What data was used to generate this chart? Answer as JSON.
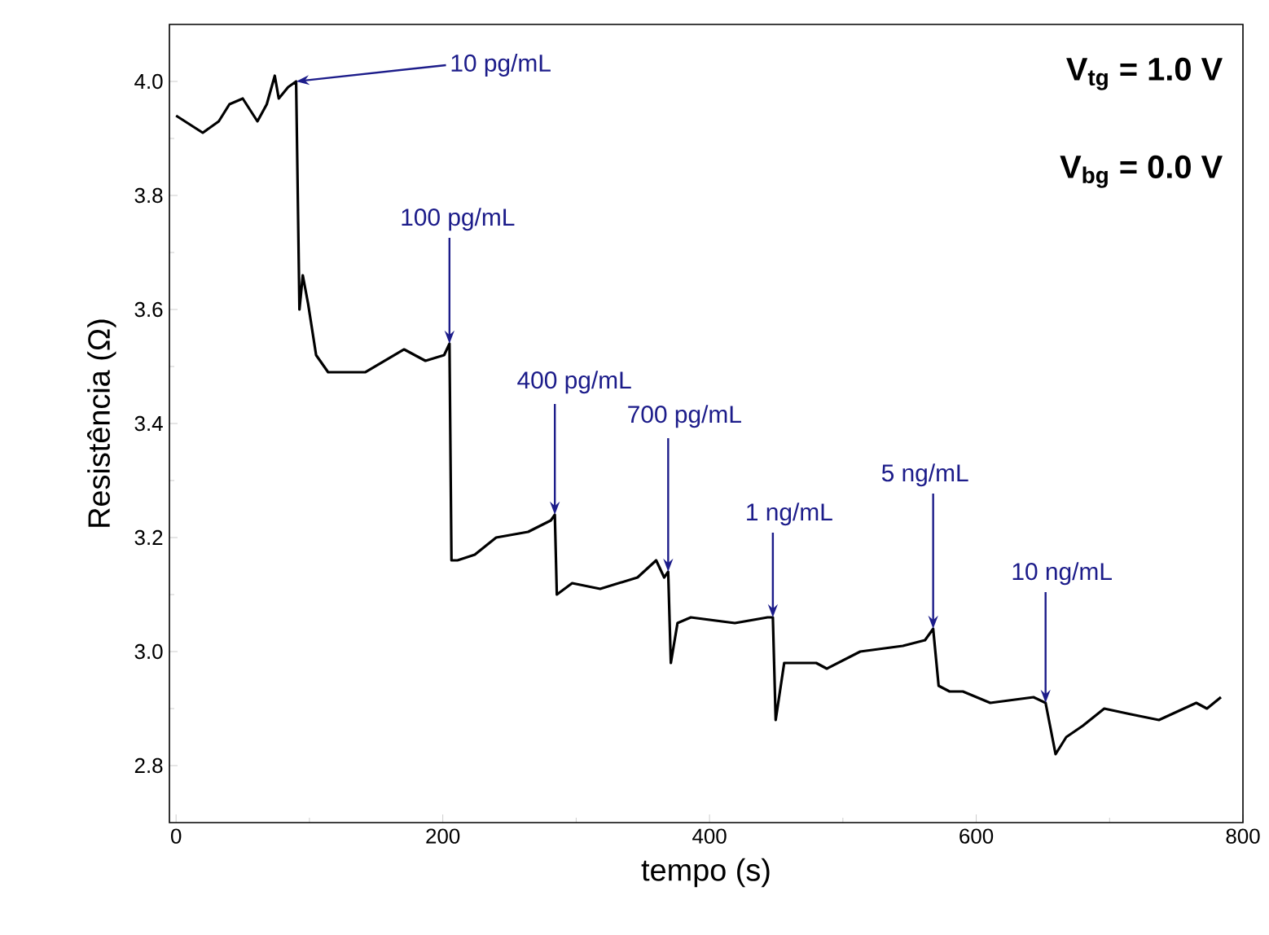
{
  "chart_data": {
    "type": "line",
    "xlabel": "tempo (s)",
    "ylabel": "Resistência (Ω)",
    "xlim": [
      -5,
      800
    ],
    "ylim": [
      2.7,
      4.1
    ],
    "xticks": [
      0,
      200,
      400,
      600,
      800
    ],
    "yticks": [
      {
        "value": 2.8,
        "label": "2.8"
      },
      {
        "value": 3.0,
        "label": "3.0"
      },
      {
        "value": 3.2,
        "label": "3.2"
      },
      {
        "value": 3.4,
        "label": "3.4"
      },
      {
        "value": 3.6,
        "label": "3.6"
      },
      {
        "value": 3.8,
        "label": "3.8"
      },
      {
        "value": 4.0,
        "label": "4.0"
      }
    ],
    "grid": false,
    "marker": "none",
    "line_style": "solid",
    "series": [
      {
        "color": "#000000",
        "x": [
          0,
          20,
          32,
          40,
          50,
          61,
          68,
          74,
          77,
          84,
          90,
          92.5,
          95,
          99,
          105,
          114,
          142,
          171,
          187,
          201,
          205,
          206.5,
          211,
          224,
          240,
          264,
          281,
          284,
          285.5,
          297,
          318,
          346,
          360,
          366,
          369,
          371,
          376,
          386,
          419,
          443.5,
          447.5,
          449.6,
          456,
          480,
          488,
          513,
          545,
          561.6,
          567.7,
          571.8,
          580,
          590,
          610.5,
          643,
          652,
          659.5,
          667.5,
          680,
          696,
          716,
          737,
          765,
          773,
          783.5
        ],
        "values": [
          3.94,
          3.91,
          3.93,
          3.96,
          3.97,
          3.93,
          3.96,
          4.01,
          3.97,
          3.99,
          4.0,
          3.6,
          3.66,
          3.61,
          3.52,
          3.49,
          3.49,
          3.53,
          3.51,
          3.52,
          3.54,
          3.16,
          3.16,
          3.17,
          3.2,
          3.21,
          3.23,
          3.24,
          3.1,
          3.12,
          3.11,
          3.13,
          3.16,
          3.13,
          3.14,
          2.98,
          3.05,
          3.06,
          3.05,
          3.06,
          3.06,
          2.88,
          2.98,
          2.98,
          2.97,
          3.0,
          3.01,
          3.02,
          3.04,
          2.94,
          2.93,
          2.93,
          2.91,
          2.92,
          2.91,
          2.82,
          2.85,
          2.87,
          2.9,
          2.89,
          2.88,
          2.91,
          2.9,
          2.92
        ]
      }
    ],
    "annotations": [
      {
        "text": "10 pg/mL",
        "x": 90,
        "y": 4.0
      },
      {
        "text": "100  pg/mL",
        "x": 205,
        "y": 3.54
      },
      {
        "text": "400 pg/mL",
        "x": 284,
        "y": 3.24
      },
      {
        "text": "700  pg/mL",
        "x": 369,
        "y": 3.14
      },
      {
        "text": "1 ng/mL",
        "x": 447.5,
        "y": 3.06
      },
      {
        "text": "5 ng/mL",
        "x": 567.7,
        "y": 3.04
      },
      {
        "text": "10 ng/mL",
        "x": 652,
        "y": 2.91
      },
      "V$_{tg}$ = 1.0 V",
      "V$_{bg}$ = 0.0 V"
    ]
  }
}
